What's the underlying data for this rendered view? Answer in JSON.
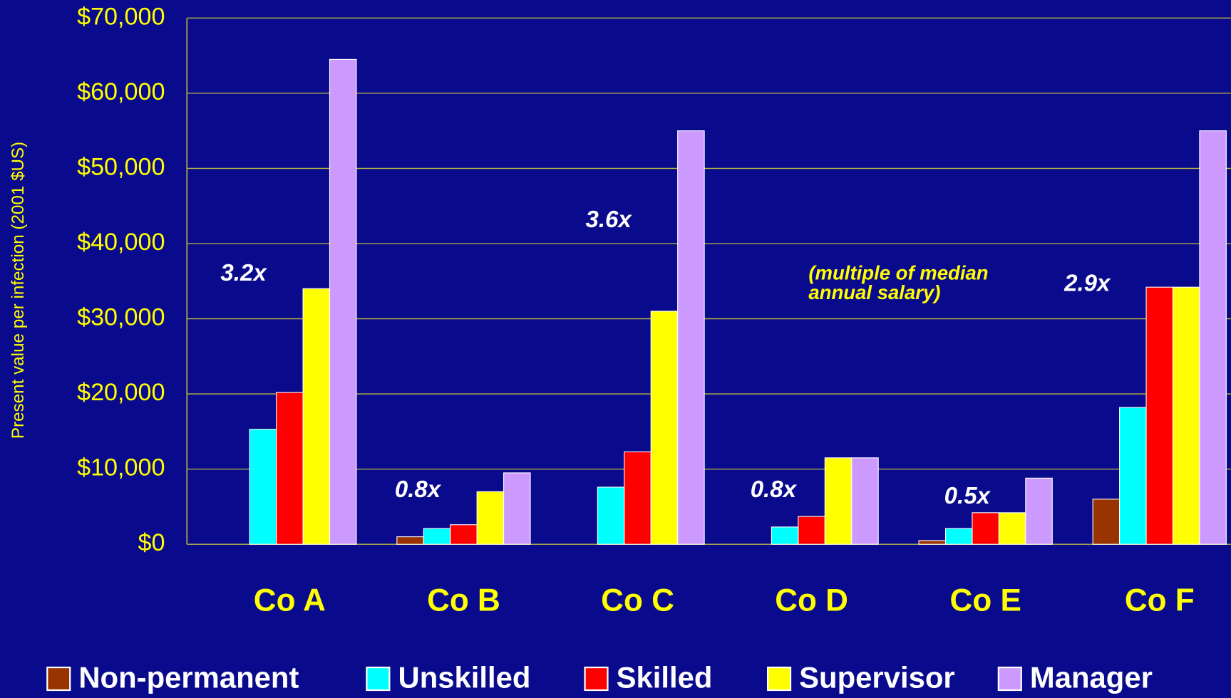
{
  "chart_data": {
    "type": "bar",
    "y_label": "Present value per infection (2001 $US)",
    "categories": [
      "Co A",
      "Co B",
      "Co C",
      "Co D",
      "Co E",
      "Co F"
    ],
    "series": [
      {
        "name": "Non-permanent",
        "color": "#993300",
        "values": [
          0,
          1000,
          0,
          0,
          500,
          6000
        ]
      },
      {
        "name": "Unskilled",
        "color": "#00ffff",
        "values": [
          15300,
          2100,
          7600,
          2300,
          2100,
          18200
        ]
      },
      {
        "name": "Skilled",
        "color": "#ff0000",
        "values": [
          20200,
          2600,
          12300,
          3700,
          4200,
          34200
        ]
      },
      {
        "name": "Supervisor",
        "color": "#ffff00",
        "values": [
          34000,
          7000,
          31000,
          11500,
          4200,
          34200
        ]
      },
      {
        "name": "Manager",
        "color": "#cc99ff",
        "values": [
          64500,
          9500,
          55000,
          11500,
          8800,
          55000
        ]
      }
    ],
    "ylim": [
      0,
      70000
    ],
    "yticks": [
      {
        "value": 0,
        "label": "$0"
      },
      {
        "value": 10000,
        "label": "$10,000"
      },
      {
        "value": 20000,
        "label": "$20,000"
      },
      {
        "value": 30000,
        "label": "$30,000"
      },
      {
        "value": 40000,
        "label": "$40,000"
      },
      {
        "value": 50000,
        "label": "$50,000"
      },
      {
        "value": 60000,
        "label": "$60,000"
      },
      {
        "value": 70000,
        "label": "$70,000"
      }
    ],
    "grid": true,
    "annotations": [
      "3.2x",
      "0.8x",
      "3.6x",
      "0.8x",
      "0.5x",
      "2.9x"
    ],
    "note": [
      "(multiple of median",
      "annual salary)"
    ],
    "legend": "bottom"
  }
}
